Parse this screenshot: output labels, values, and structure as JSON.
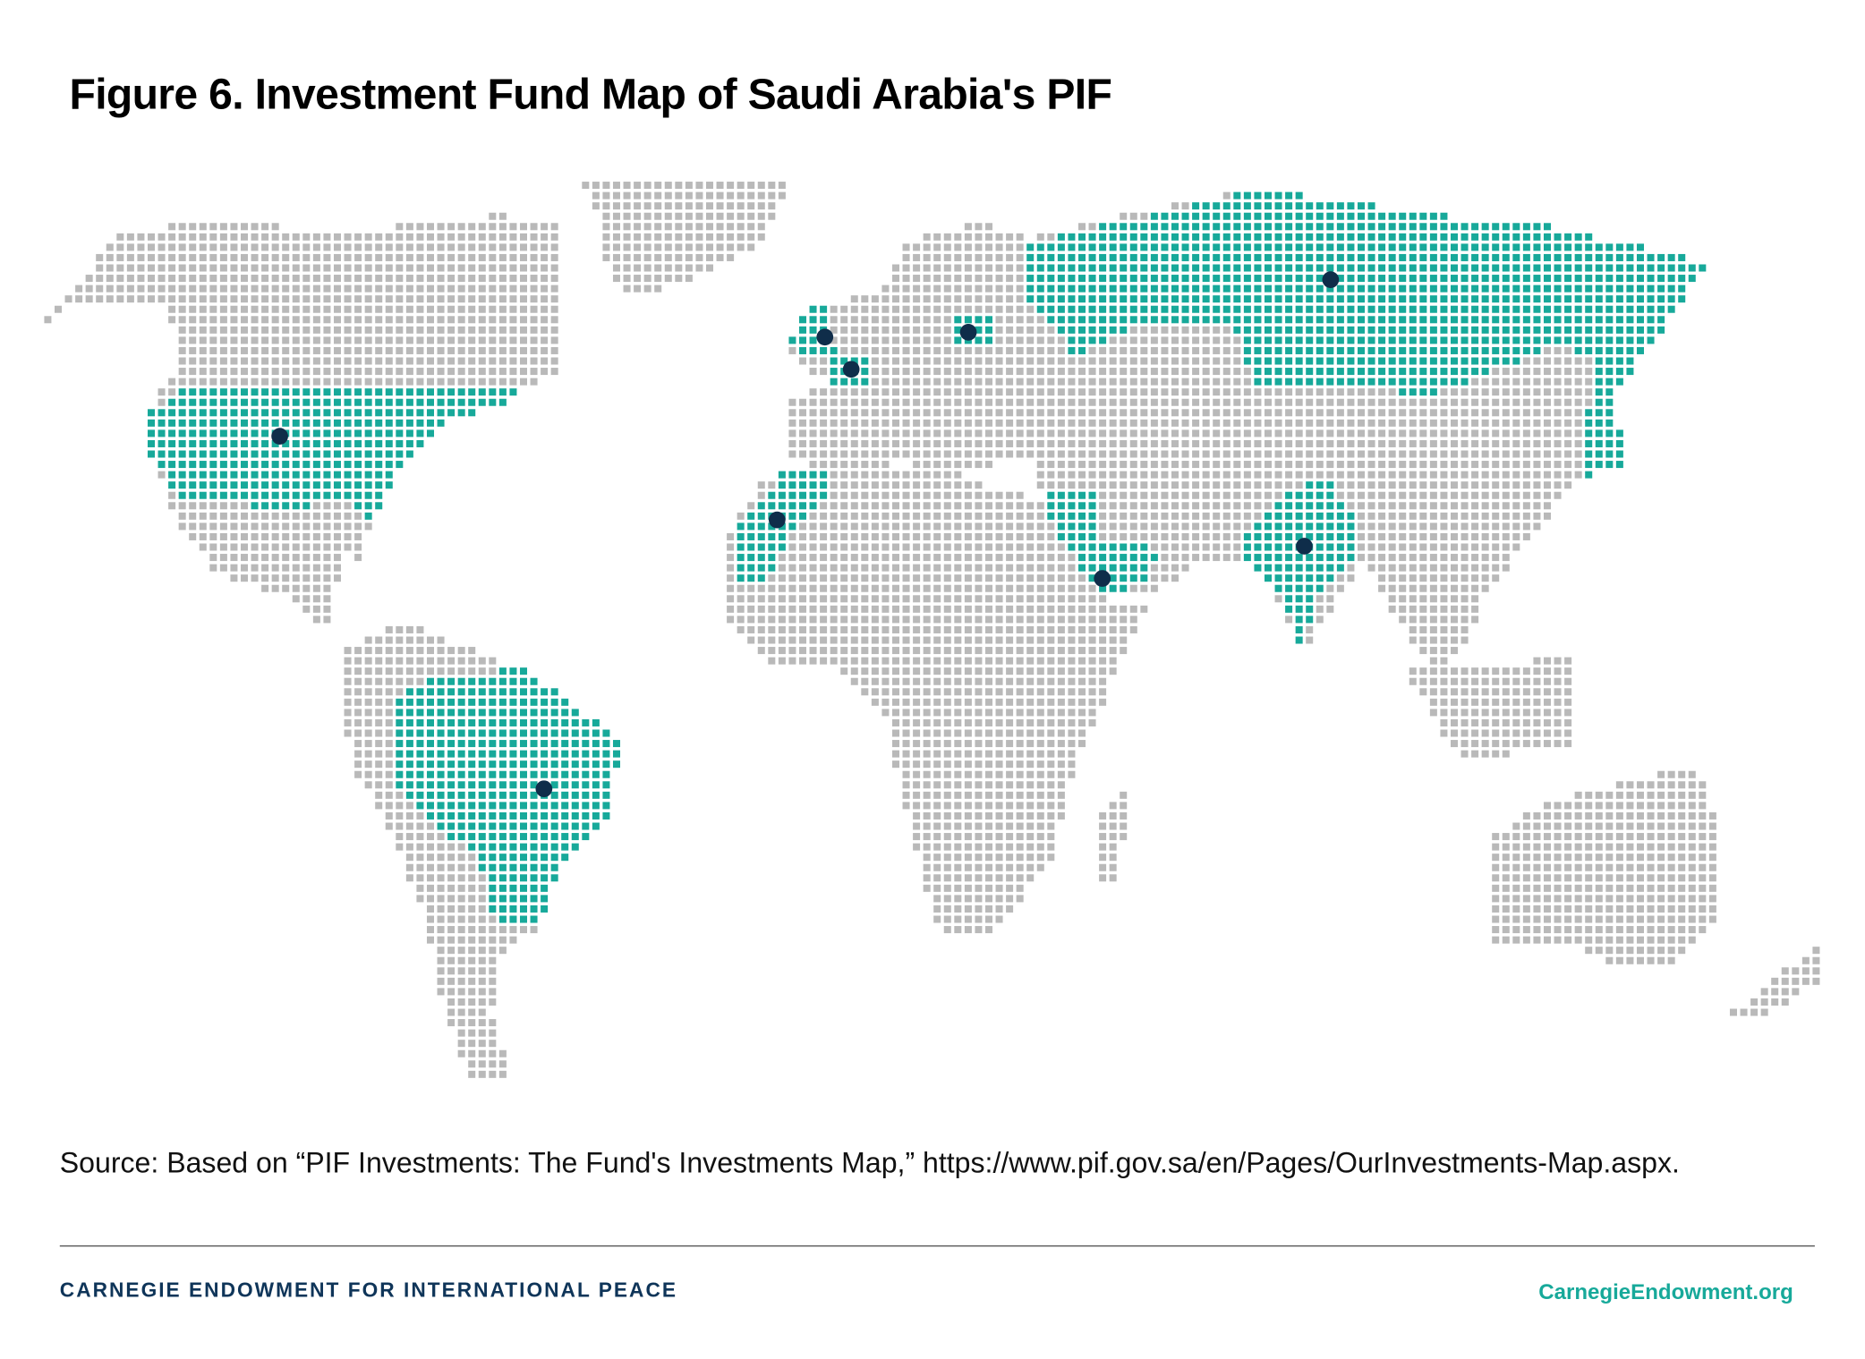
{
  "title": "Figure 6. Investment Fund Map of Saudi Arabia's PIF",
  "source": "Source:  Based on “PIF Investments: The Fund's Investments Map,” https://www.pif.gov.sa/en/Pages/OurInvestments-Map.aspx.",
  "footer": {
    "organization": "CARNEGIE ENDOWMENT FOR INTERNATIONAL PEACE",
    "website": "CarnegieEndowment.org"
  },
  "colors": {
    "land": "#b9b9b9",
    "invested_country": "#17a99a",
    "investment_marker": "#0f2d4a"
  }
}
